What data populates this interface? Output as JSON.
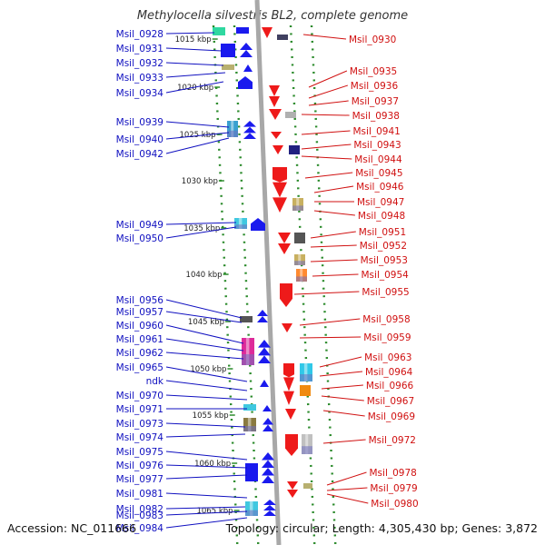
{
  "title": "Methylocella silvestris BL2, complete genome",
  "footer": {
    "accession": "Accession: NC_011666",
    "topology": "Topology: circular; Length: 4,305,430 bp; Genes: 3,872"
  },
  "colors": {
    "left_label": "#1010c0",
    "right_label": "#d01010",
    "forward": "#1a1aee",
    "reverse": "#ee1a1a",
    "track_dot": "#2a8a2a",
    "axis": "#a8a8a8"
  },
  "kbp_ticks": [
    {
      "label": "1015 kbp"
    },
    {
      "label": "1020 kbp"
    },
    {
      "label": "1025 kbp"
    },
    {
      "label": "1030 kbp"
    },
    {
      "label": "1035 kbp"
    },
    {
      "label": "1040 kbp"
    },
    {
      "label": "1045 kbp"
    },
    {
      "label": "1050 kbp"
    },
    {
      "label": "1055 kbp"
    },
    {
      "label": "1060 kbp"
    },
    {
      "label": "1065 kbp"
    }
  ],
  "left_labels": [
    "Msil_0928",
    "Msil_0931",
    "Msil_0932",
    "Msil_0933",
    "Msil_0934",
    "Msil_0939",
    "Msil_0940",
    "Msil_0942",
    "Msil_0949",
    "Msil_0950",
    "Msil_0956",
    "Msil_0957",
    "Msil_0960",
    "Msil_0961",
    "Msil_0962",
    "Msil_0965",
    "ndk",
    "Msil_0970",
    "Msil_0971",
    "Msil_0973",
    "Msil_0974",
    "Msil_0975",
    "Msil_0976",
    "Msil_0977",
    "Msil_0981",
    "Msil_0982",
    "Msil_0983",
    "Msil_0984"
  ],
  "right_labels": [
    "Msil_0930",
    "Msil_0935",
    "Msil_0936",
    "Msil_0937",
    "Msil_0938",
    "Msil_0941",
    "Msil_0943",
    "Msil_0944",
    "Msil_0945",
    "Msil_0946",
    "Msil_0947",
    "Msil_0948",
    "Msil_0951",
    "Msil_0952",
    "Msil_0953",
    "Msil_0954",
    "Msil_0955",
    "Msil_0958",
    "Msil_0959",
    "Msil_0963",
    "Msil_0964",
    "Msil_0966",
    "Msil_0967",
    "Msil_0969",
    "Msil_0972",
    "Msil_0978",
    "Msil_0979",
    "Msil_0980"
  ]
}
